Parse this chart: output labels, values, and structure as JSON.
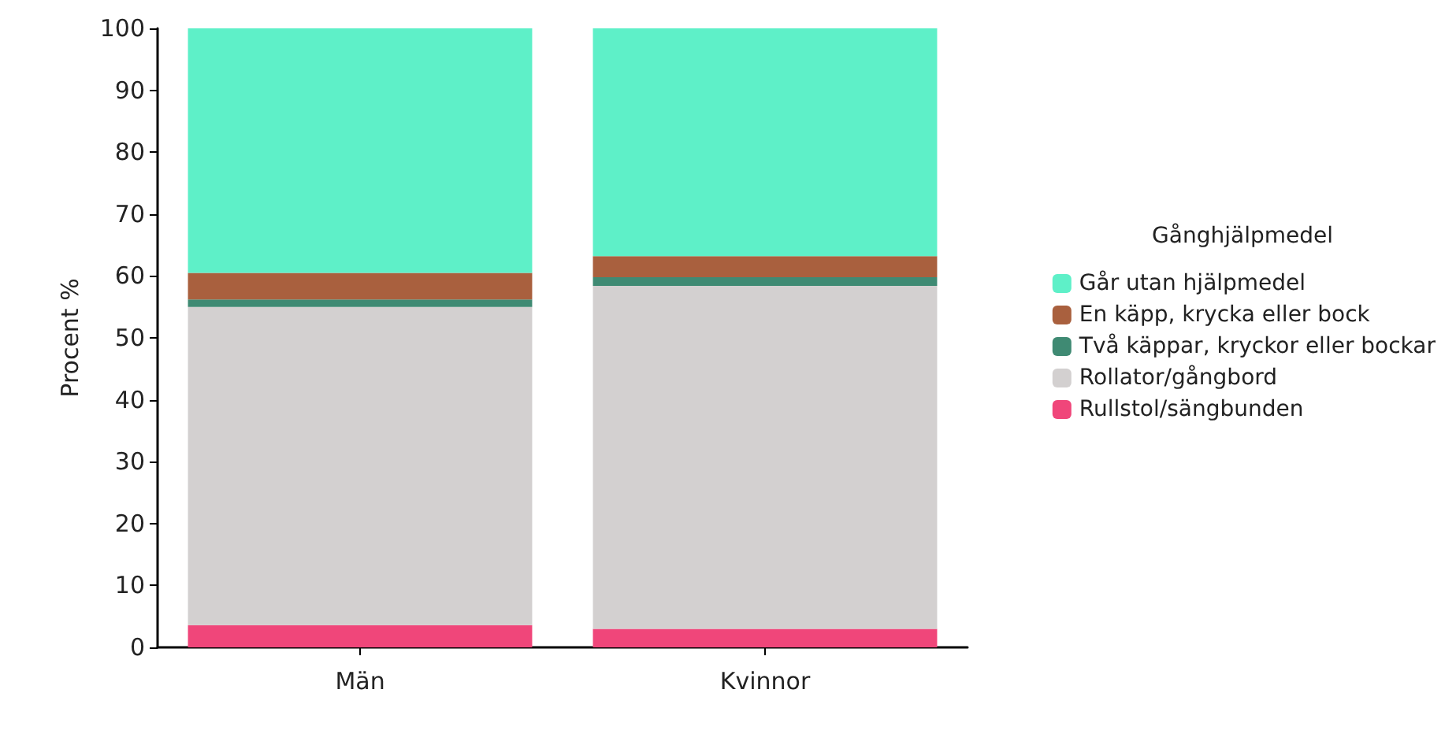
{
  "chart_data": {
    "type": "bar",
    "stacked": true,
    "ylabel": "Procent %",
    "legend_title": "Gånghjälpmedel",
    "legend": "right",
    "grid": false,
    "categories": [
      "Män",
      "Kvinnor"
    ],
    "ylim": [
      0,
      100
    ],
    "yticks": [
      0,
      10,
      20,
      30,
      40,
      50,
      60,
      70,
      80,
      90,
      100
    ],
    "series": [
      {
        "name": "Rullstol/sängbunden",
        "color": "#f0467a",
        "values": [
          3.6,
          3.0
        ]
      },
      {
        "name": "Rollator/gångbord",
        "color": "#d3d0d0",
        "values": [
          51.4,
          55.4
        ]
      },
      {
        "name": "Två käppar, kryckor eller bockar",
        "color": "#3f8a73",
        "values": [
          1.2,
          1.4
        ]
      },
      {
        "name": "En käpp, krycka eller bock",
        "color": "#a9603e",
        "values": [
          4.3,
          3.4
        ]
      },
      {
        "name": "Går utan hjälpmedel",
        "color": "#5ef0c8",
        "values": [
          39.5,
          36.8
        ]
      }
    ]
  }
}
